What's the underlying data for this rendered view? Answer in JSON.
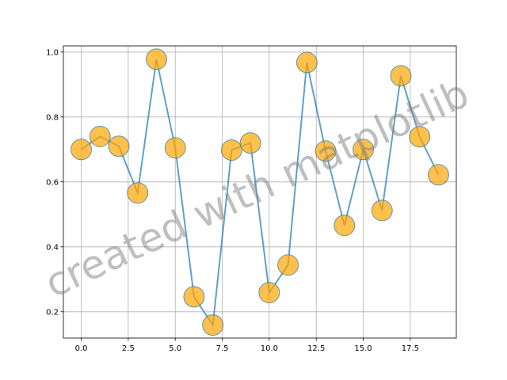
{
  "chart_data": {
    "type": "line",
    "x": [
      0,
      1,
      2,
      3,
      4,
      5,
      6,
      7,
      8,
      9,
      10,
      11,
      12,
      13,
      14,
      15,
      16,
      17,
      18,
      19
    ],
    "series": [
      {
        "color": "#1f77b4",
        "marker_color": "#ffa500",
        "values": [
          0.7,
          0.74,
          0.71,
          0.566,
          0.978,
          0.705,
          0.246,
          0.159,
          0.698,
          0.72,
          0.259,
          0.344,
          0.968,
          0.695,
          0.466,
          0.7,
          0.512,
          0.927,
          0.739,
          0.622
        ]
      }
    ],
    "xlim": [
      -0.95,
      19.95
    ],
    "ylim": [
      0.119,
      1.019
    ],
    "xticks": [
      {
        "value": 0,
        "label": "0.0"
      },
      2.5,
      {
        "value": 5,
        "label": "5.0"
      },
      7.5,
      {
        "value": 10,
        "label": "10.0"
      },
      12.5,
      {
        "value": 15,
        "label": "15.0"
      },
      17.5
    ],
    "yticks": [
      0.2,
      0.4,
      0.6,
      0.8,
      {
        "value": 1,
        "label": "1.0"
      }
    ],
    "grid": true,
    "watermark": "created with matplotlib"
  }
}
